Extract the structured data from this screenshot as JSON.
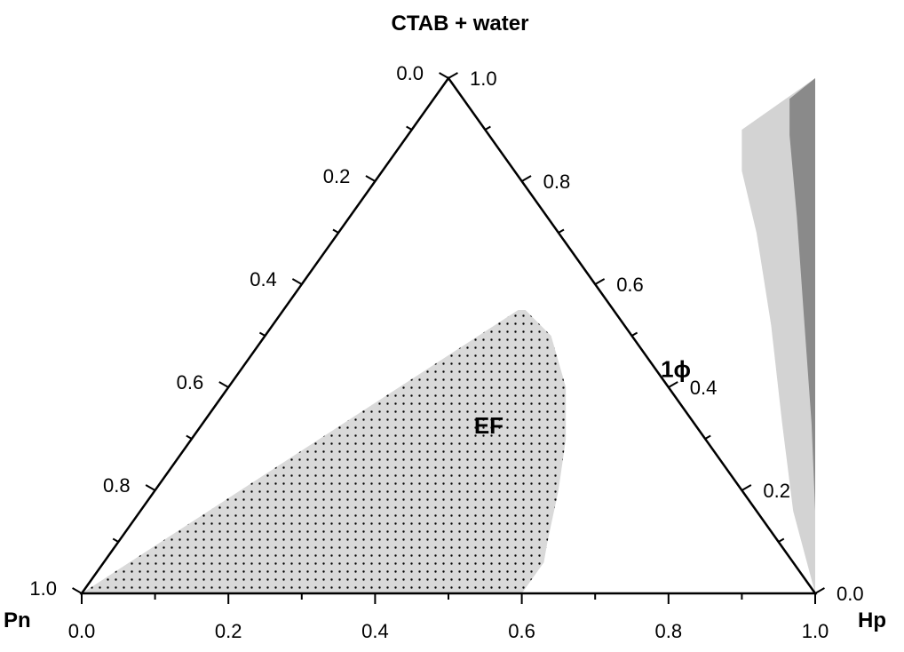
{
  "chart_data": {
    "type": "ternary",
    "apex_labels": {
      "top": "CTAB + water",
      "left": "Pn",
      "right": "Hp"
    },
    "axes": {
      "bottom": {
        "ticks": [
          "0.0",
          "0.2",
          "0.4",
          "0.6",
          "0.8",
          "1.0"
        ]
      },
      "left": {
        "ticks": [
          "0.0",
          "0.2",
          "0.4",
          "0.6",
          "0.8",
          "1.0"
        ]
      },
      "right": {
        "ticks": [
          "0.0",
          "0.2",
          "0.4",
          "0.6",
          "0.8",
          "1.0"
        ]
      }
    },
    "regions": [
      {
        "label": "EF",
        "fill": "#d9d9d9",
        "pattern": "dotted",
        "boundary_bottom_top": [
          [
            0.0,
            0.0
          ],
          [
            0.6,
            0.0
          ],
          [
            0.6,
            0.06
          ],
          [
            0.585,
            0.1
          ],
          [
            0.55,
            0.2
          ],
          [
            0.51,
            0.3
          ],
          [
            0.46,
            0.4
          ],
          [
            0.39,
            0.5
          ],
          [
            0.33,
            0.55
          ],
          [
            0.32,
            0.55
          ]
        ]
      },
      {
        "label": "",
        "fill": "#d3d3d3",
        "boundary_bottom_top": [
          [
            1.0,
            0.0
          ],
          [
            0.5,
            1.0
          ],
          [
            0.45,
            0.9
          ],
          [
            0.49,
            0.82
          ],
          [
            0.57,
            0.7
          ],
          [
            0.68,
            0.52
          ],
          [
            0.79,
            0.33
          ],
          [
            0.89,
            0.16
          ],
          [
            1.0,
            0.0
          ]
        ]
      },
      {
        "label": "",
        "fill": "#8a8a8a",
        "boundary_bottom_top": [
          [
            1.0,
            0.0
          ],
          [
            0.5,
            1.0
          ],
          [
            0.485,
            0.96
          ],
          [
            0.52,
            0.89
          ],
          [
            0.61,
            0.73
          ],
          [
            0.72,
            0.53
          ],
          [
            0.83,
            0.33
          ],
          [
            0.92,
            0.16
          ],
          [
            1.0,
            0.0
          ]
        ]
      }
    ],
    "annotations": [
      {
        "text": "1ϕ",
        "bottom": 0.6,
        "top": 0.42
      },
      {
        "text": "EF",
        "bottom": 0.4,
        "top": 0.31
      }
    ]
  }
}
